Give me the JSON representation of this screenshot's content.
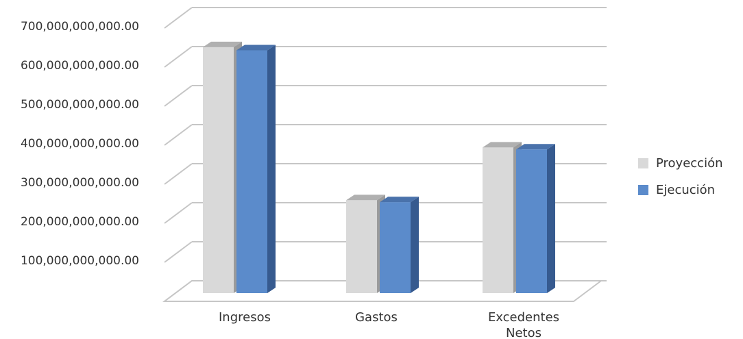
{
  "chart_data": {
    "type": "bar",
    "title": "",
    "xlabel": "",
    "ylabel": "",
    "categories": [
      [
        "Ingresos"
      ],
      [
        "Gastos"
      ],
      [
        "Excedentes",
        "Netos"
      ]
    ],
    "series": [
      {
        "name": "Proyección",
        "values": [
          630000000000,
          238000000000,
          373000000000
        ],
        "color": "#d9d9d9"
      },
      {
        "name": "Ejecución",
        "values": [
          622000000000,
          233000000000,
          368000000000
        ],
        "color": "#5b8bcb"
      }
    ],
    "ylim": [
      0,
      700000000000
    ],
    "yticks": [
      100000000000,
      200000000000,
      300000000000,
      400000000000,
      500000000000,
      600000000000,
      700000000000
    ],
    "ytick_labels": [
      "100,000,000,000.00",
      "200,000,000,000.00",
      "300,000,000,000.00",
      "400,000,000,000.00",
      "500,000,000,000.00",
      "600,000,000,000.00",
      "700,000,000,000.00"
    ],
    "legend": [
      "Proyección",
      "Ejecución"
    ],
    "legend_position": "right",
    "grid": true,
    "style": "3d-clustered-column"
  }
}
